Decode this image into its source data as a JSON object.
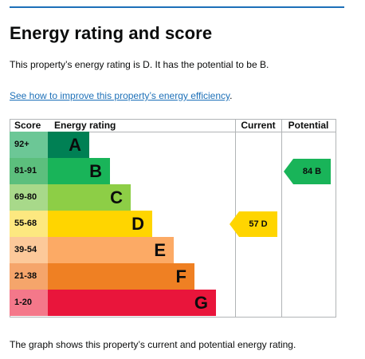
{
  "heading": "Energy rating and score",
  "lead": "This property’s energy rating is D. It has the potential to be B.",
  "link": {
    "text": "See how to improve this property’s energy efficiency",
    "suffix": "."
  },
  "caption": "The graph shows this property’s current and potential energy rating.",
  "chart": {
    "headers": {
      "score": "Score",
      "rating": "Energy rating",
      "current": "Current",
      "potential": "Potential"
    },
    "bands": [
      {
        "range": "92+",
        "letter": "A",
        "range_color": "#6cc796",
        "band_color": "#008054"
      },
      {
        "range": "81-91",
        "letter": "B",
        "range_color": "#5cbf7d",
        "band_color": "#19b459"
      },
      {
        "range": "69-80",
        "letter": "C",
        "range_color": "#a8d98a",
        "band_color": "#8dce46"
      },
      {
        "range": "55-68",
        "letter": "D",
        "range_color": "#fde880",
        "band_color": "#ffd500"
      },
      {
        "range": "39-54",
        "letter": "E",
        "range_color": "#fcc99a",
        "band_color": "#fcaa65"
      },
      {
        "range": "21-38",
        "letter": "F",
        "range_color": "#f5a56b",
        "band_color": "#ef8023"
      },
      {
        "range": "1-20",
        "letter": "G",
        "range_color": "#f4788a",
        "band_color": "#e9153b"
      }
    ],
    "current": {
      "label": "57 D",
      "color": "#ffd500",
      "text_color": "#0b0c0c"
    },
    "potential": {
      "label": "84 B",
      "color": "#19b459",
      "text_color": "#0b0c0c"
    }
  }
}
